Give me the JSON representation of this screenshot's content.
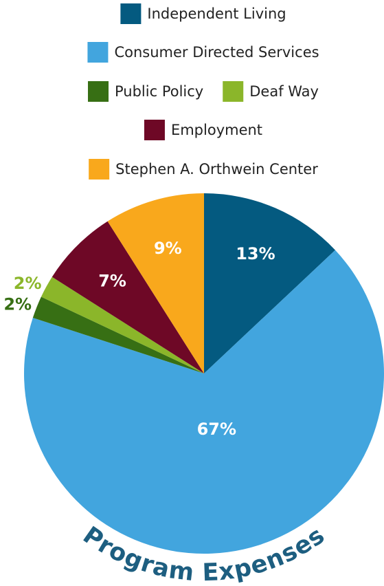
{
  "chart_data": {
    "type": "pie",
    "title": "Program Expenses",
    "categories": [
      "Independent Living",
      "Consumer Directed Services",
      "Public Policy",
      "Deaf Way",
      "Employment",
      "Stephen A. Orthwein Center"
    ],
    "values": [
      13,
      67,
      2,
      2,
      7,
      9
    ],
    "value_labels": [
      "13%",
      "67%",
      "2%",
      "2%",
      "7%",
      "9%"
    ],
    "colors": [
      "#045a80",
      "#42a5de",
      "#376f14",
      "#8bb62a",
      "#6e0826",
      "#f9a81c"
    ]
  }
}
